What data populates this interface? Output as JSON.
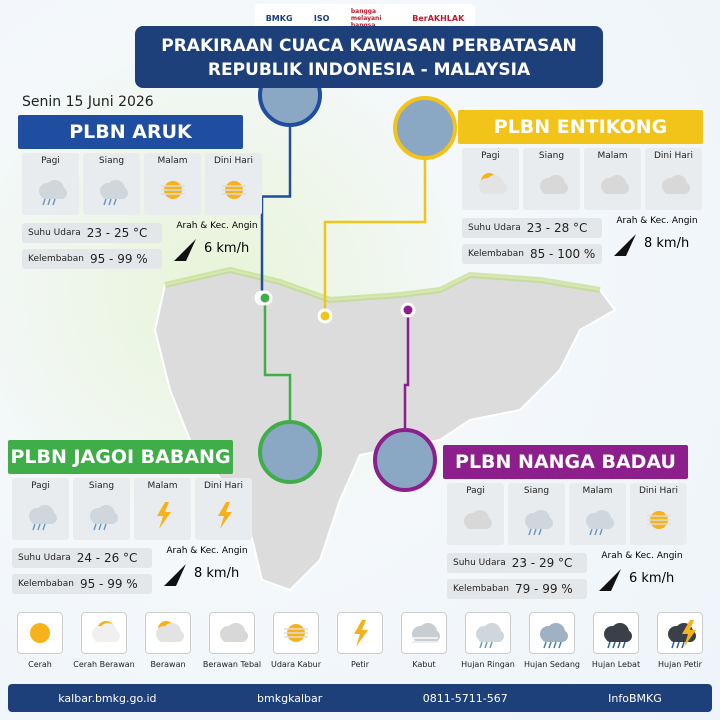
{
  "header": {
    "logos": [
      "BMKG",
      "ISO",
      "bangga melayani bangsa",
      "BerAKHLAK"
    ],
    "title": [
      "PRAKIRAAN CUACA KAWASAN PERBATASAN",
      "REPUBLIK INDONESIA - MALAYSIA"
    ],
    "date": "Senin 15 Juni 2026"
  },
  "periods": [
    "Pagi",
    "Siang",
    "Malam",
    "Dini Hari"
  ],
  "labels": {
    "temperature": "Suhu Udara",
    "humidity": "Kelembaban",
    "wind": "Arah & Kec. Angin"
  },
  "stations": [
    {
      "name": "PLBN ARUK",
      "color": "#1f4ea1",
      "conditions": [
        "Hujan Ringan",
        "Hujan Ringan",
        "Udara Kabur",
        "Udara Kabur"
      ],
      "temperature": "23 - 25 °C",
      "humidity": "95 - 99 %",
      "wind": "6 km/h"
    },
    {
      "name": "PLBN ENTIKONG",
      "color": "#f2c318",
      "conditions": [
        "Berawan",
        "Berawan Tebal",
        "Berawan Tebal",
        "Berawan Tebal"
      ],
      "temperature": "23 - 28 °C",
      "humidity": "85 - 100 %",
      "wind": "8 km/h"
    },
    {
      "name": "PLBN JAGOI BABANG",
      "color": "#3fae49",
      "conditions": [
        "Hujan Ringan",
        "Hujan Ringan",
        "Petir",
        "Petir"
      ],
      "temperature": "24 - 26 °C",
      "humidity": "95 - 99 %",
      "wind": "8 km/h"
    },
    {
      "name": "PLBN NANGA BADAU",
      "color": "#8c1f8c",
      "conditions": [
        "Berawan Tebal",
        "Hujan Ringan",
        "Hujan Ringan",
        "Udara Kabur"
      ],
      "temperature": "23 - 29 °C",
      "humidity": "79 - 99 %",
      "wind": "6 km/h"
    }
  ],
  "legend": [
    "Cerah",
    "Cerah Berawan",
    "Berawan",
    "Berawan Tebal",
    "Udara Kabur",
    "Petir",
    "Kabut",
    "Hujan Ringan",
    "Hujan Sedang",
    "Hujan Lebat",
    "Hujan Petir"
  ],
  "footer": {
    "website": "kalbar.bmkg.go.id",
    "social": "bmkgkalbar",
    "phone": "0811-5711-567",
    "app": "InfoBMKG"
  }
}
